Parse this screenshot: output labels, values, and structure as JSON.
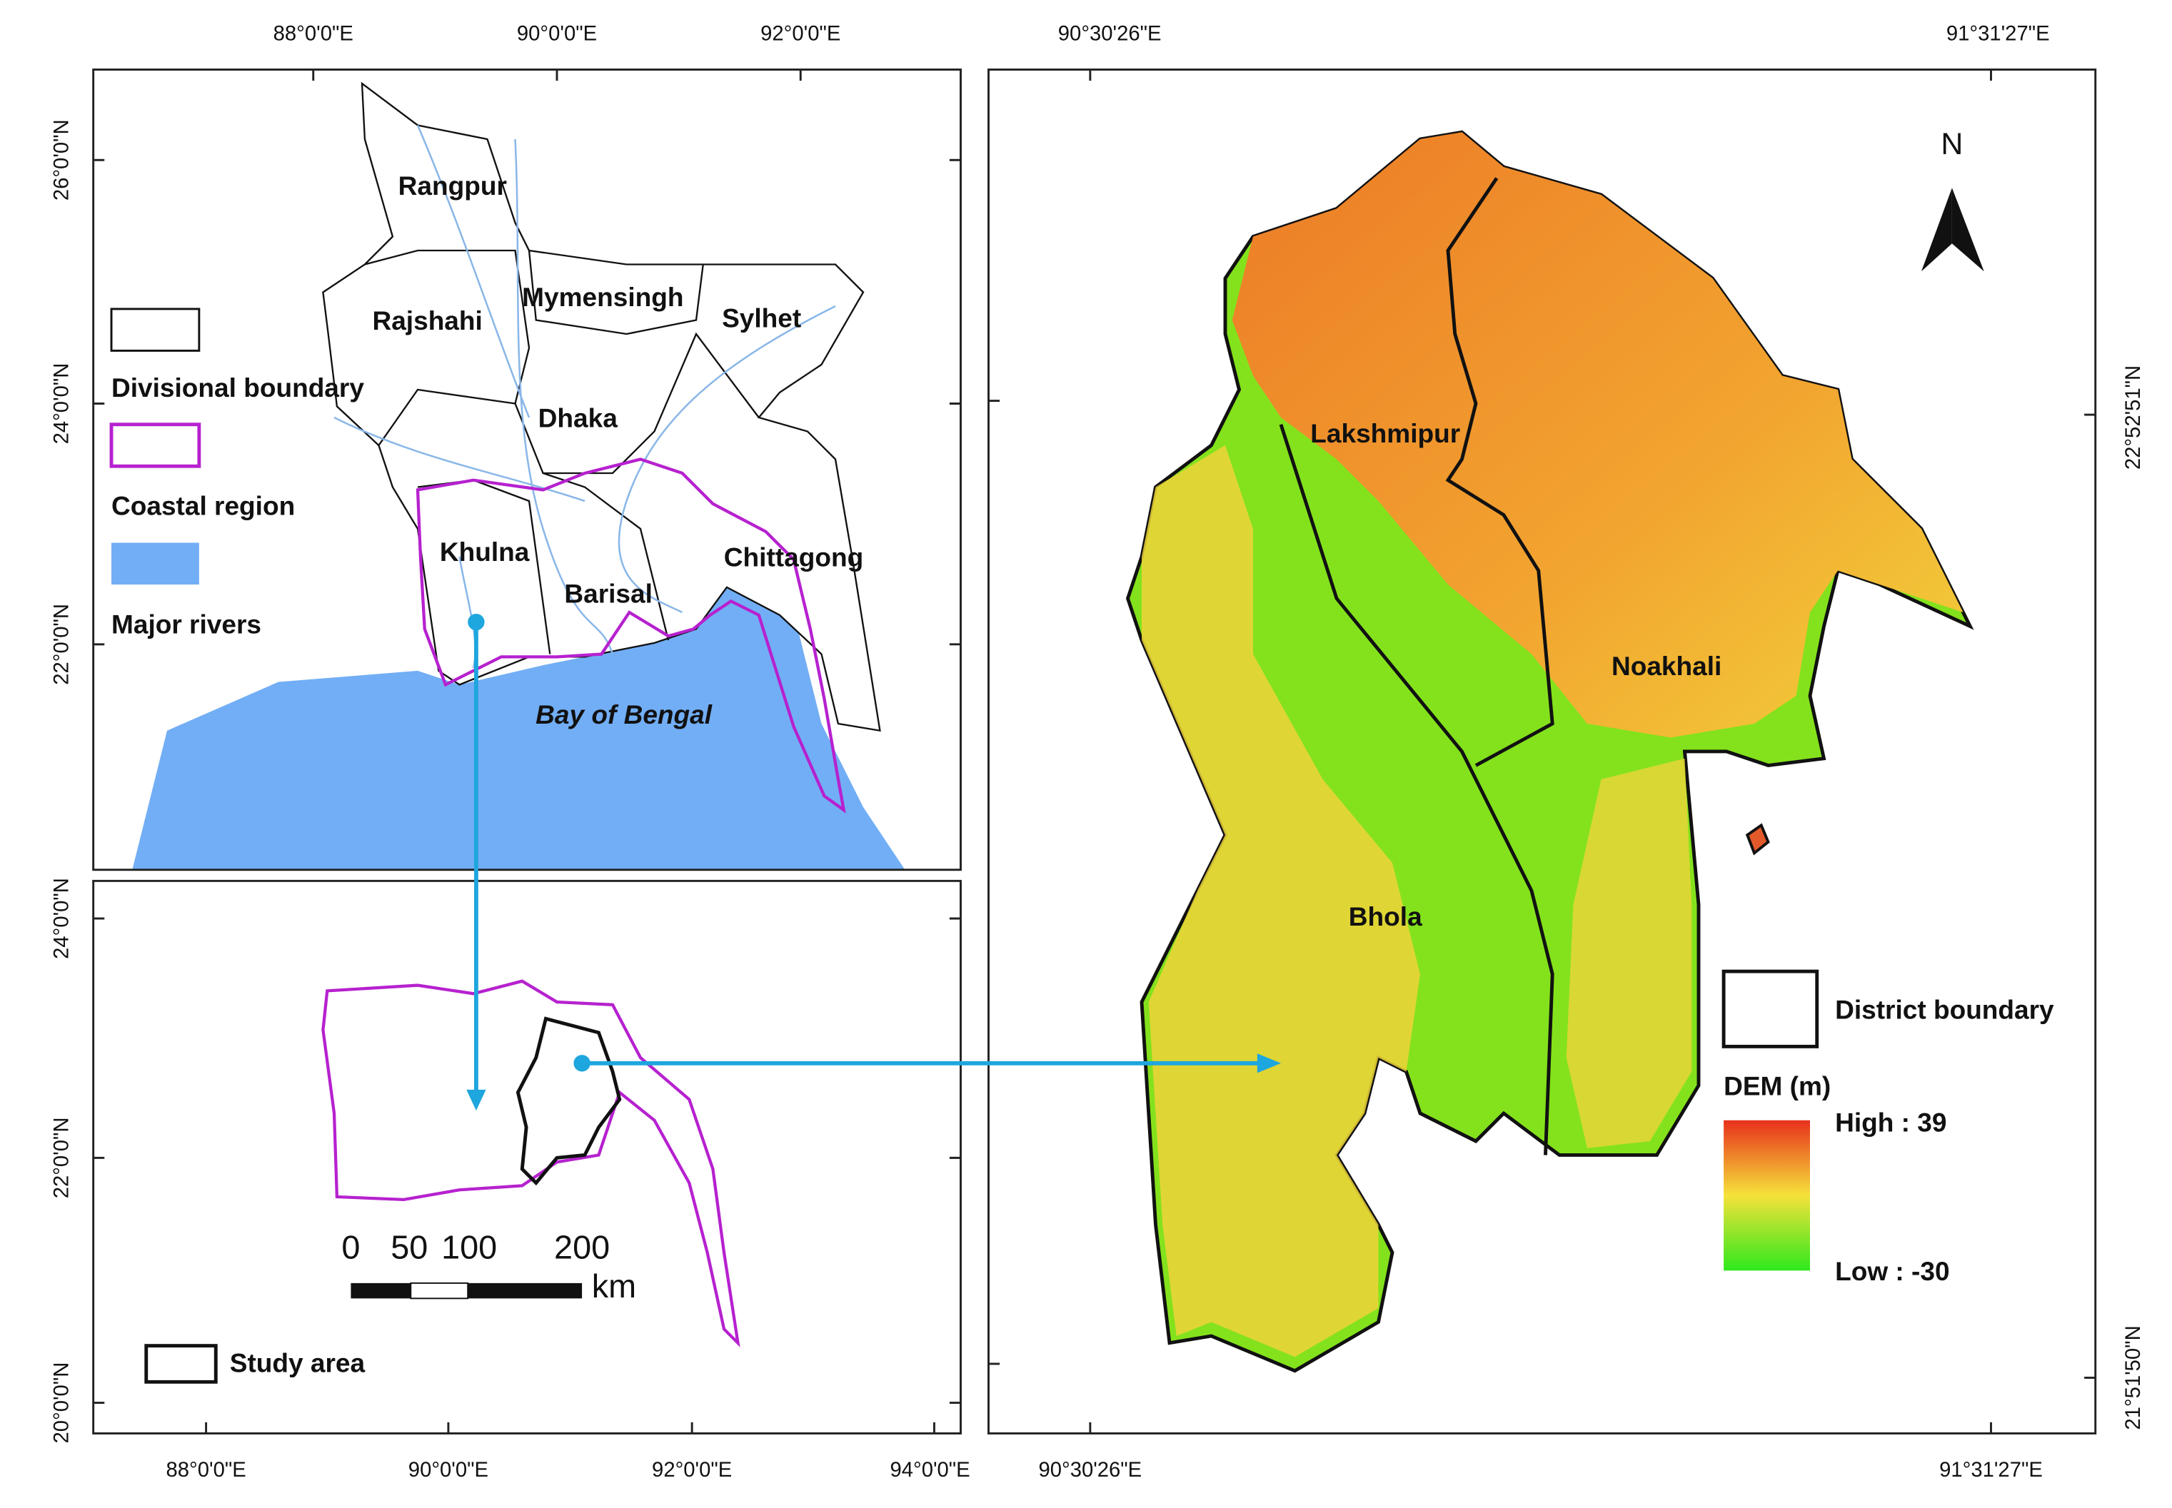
{
  "top_map": {
    "x_labels": [
      "88°0'0\"E",
      "90°0'0\"E",
      "92°0'0\"E"
    ],
    "y_labels": [
      "26°0'0\"N",
      "24°0'0\"N",
      "22°0'0\"N"
    ],
    "divisions": [
      "Rangpur",
      "Rajshahi",
      "Mymensingh",
      "Sylhet",
      "Dhaka",
      "Khulna",
      "Barisal",
      "Chittagong"
    ],
    "sea_label": "Bay of Bengal",
    "legend": [
      "Divisional boundary",
      "Coastal region",
      "Major rivers"
    ]
  },
  "inset_map": {
    "x_labels": [
      "88°0'0\"E",
      "90°0'0\"E",
      "92°0'0\"E",
      "94°0'0\"E"
    ],
    "y_labels": [
      "24°0'0\"N",
      "22°0'0\"N",
      "20°0'0\"N"
    ],
    "scale_labels": [
      "0",
      "50",
      "100",
      "200"
    ],
    "scale_unit": "km",
    "legend": "Study area"
  },
  "study_map": {
    "x_labels_top": [
      "90°30'26\"E",
      "91°31'27\"E"
    ],
    "x_labels_bottom": [
      "90°30'26\"E",
      "91°31'27\"E"
    ],
    "y_labels": [
      "22°52'51\"N",
      "21°51'50\"N"
    ],
    "districts": [
      "Lakshmipur",
      "Noakhali",
      "Bhola"
    ],
    "north": "N",
    "legend": {
      "boundary": "District boundary",
      "dem_title": "DEM (m)",
      "high": "High : 39",
      "low": "Low : -30"
    }
  }
}
